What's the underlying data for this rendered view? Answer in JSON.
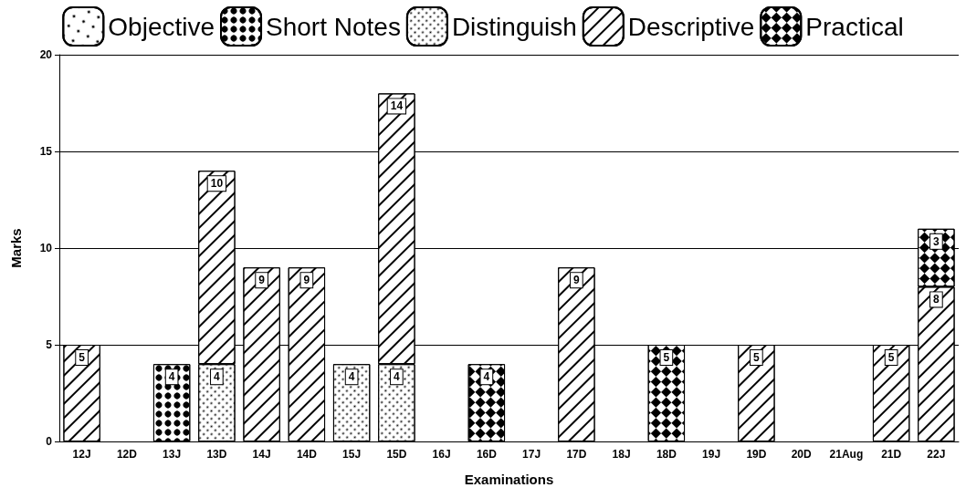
{
  "chart_data": {
    "type": "bar",
    "stacked": true,
    "xlabel": "Examinations",
    "ylabel": "Marks",
    "categories": [
      "12J",
      "12D",
      "13J",
      "13D",
      "14J",
      "14D",
      "15J",
      "15D",
      "16J",
      "16D",
      "17J",
      "17D",
      "18J",
      "18D",
      "19J",
      "19D",
      "20D",
      "21Aug",
      "21D",
      "22J"
    ],
    "series": [
      {
        "name": "Objective",
        "color": "#ffffff",
        "values": [
          null,
          null,
          null,
          null,
          null,
          null,
          null,
          null,
          null,
          null,
          null,
          null,
          null,
          null,
          null,
          null,
          null,
          null,
          null,
          null
        ]
      },
      {
        "name": "Short Notes",
        "color": "#ffffff",
        "values": [
          null,
          null,
          4,
          null,
          null,
          null,
          null,
          null,
          null,
          null,
          null,
          null,
          null,
          null,
          null,
          null,
          null,
          null,
          null,
          null
        ]
      },
      {
        "name": "Distinguish",
        "color": "#ffffff",
        "values": [
          null,
          null,
          null,
          4,
          null,
          null,
          4,
          4,
          null,
          null,
          null,
          null,
          null,
          null,
          null,
          null,
          null,
          null,
          null,
          null
        ]
      },
      {
        "name": "Descriptive",
        "color": "#ffffff",
        "values": [
          5,
          null,
          null,
          10,
          9,
          9,
          null,
          14,
          null,
          null,
          null,
          9,
          null,
          null,
          null,
          5,
          null,
          null,
          5,
          8
        ]
      },
      {
        "name": "Practical",
        "color": "#ffffff",
        "values": [
          null,
          null,
          null,
          null,
          null,
          null,
          null,
          null,
          null,
          4,
          null,
          null,
          null,
          5,
          null,
          null,
          null,
          null,
          null,
          3
        ]
      }
    ],
    "ylim": [
      0,
      20
    ],
    "yticks": [
      0,
      5,
      10,
      15,
      20
    ],
    "grid": "y",
    "legend": "top",
    "data_labels": true
  }
}
